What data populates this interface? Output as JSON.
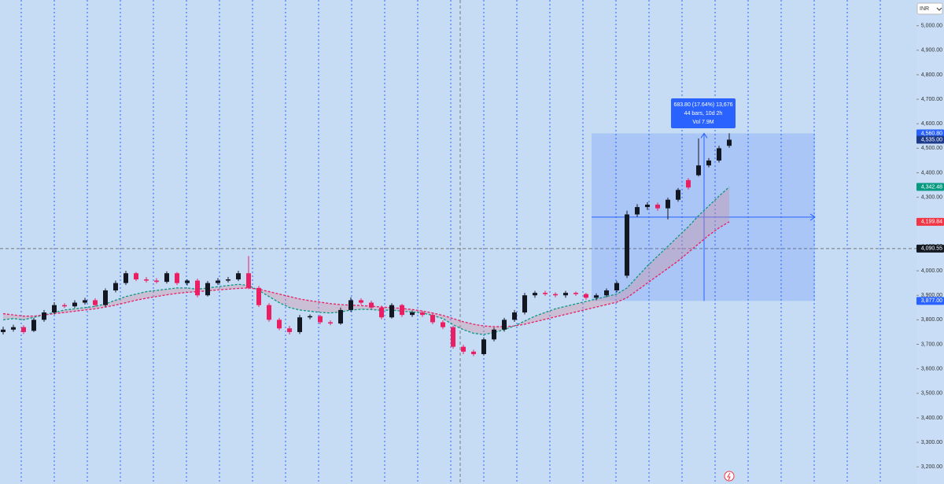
{
  "chart_data": {
    "type": "candlestick",
    "currency": "INR",
    "up_color": "#131722",
    "down_color": "#e91e63",
    "open": [
      3750,
      3760,
      3770,
      3755,
      3800,
      3830,
      3860,
      3855,
      3870,
      3880,
      3860,
      3920,
      3950,
      3990,
      3965,
      3960,
      3955,
      3990,
      3950,
      3960,
      3900,
      3950,
      3960,
      3965,
      3990,
      3930,
      3860,
      3800,
      3765,
      3750,
      3810,
      3815,
      3790,
      3785,
      3840,
      3880,
      3870,
      3850,
      3810,
      3860,
      3820,
      3830,
      3820,
      3790,
      3770,
      3690,
      3670,
      3660,
      3720,
      3760,
      3800,
      3830,
      3900,
      3910,
      3905,
      3900,
      3910,
      3905,
      3890,
      3900,
      3920,
      3980,
      4230,
      4260,
      4270,
      4255,
      4290,
      4370,
      4390,
      4430,
      4450,
      4510
    ],
    "high": [
      3772,
      3780,
      3778,
      3808,
      3840,
      3872,
      3868,
      3880,
      3890,
      3888,
      3928,
      3960,
      4000,
      3995,
      3975,
      3970,
      3998,
      3995,
      3965,
      3968,
      3958,
      3970,
      3975,
      4000,
      4060,
      3938,
      3868,
      3808,
      3775,
      3820,
      3822,
      3820,
      3798,
      3850,
      3892,
      3888,
      3878,
      3858,
      3868,
      3865,
      3838,
      3836,
      3826,
      3798,
      3776,
      3698,
      3678,
      3728,
      3768,
      3808,
      3840,
      3910,
      3918,
      3918,
      3912,
      3918,
      3915,
      3910,
      3908,
      3928,
      3958,
      4245,
      4272,
      4280,
      4278,
      4298,
      4338,
      4378,
      4540,
      4460,
      4510,
      4561
    ],
    "low": [
      3740,
      3752,
      3742,
      3750,
      3792,
      3822,
      3848,
      3848,
      3862,
      3852,
      3852,
      3912,
      3942,
      3958,
      3952,
      3948,
      3948,
      3942,
      3940,
      3892,
      3895,
      3942,
      3952,
      3958,
      3925,
      3852,
      3792,
      3758,
      3740,
      3742,
      3802,
      3782,
      3778,
      3780,
      3832,
      3862,
      3842,
      3802,
      3805,
      3812,
      3812,
      3812,
      3782,
      3762,
      3682,
      3660,
      3652,
      3655,
      3712,
      3752,
      3792,
      3822,
      3890,
      3898,
      3892,
      3890,
      3898,
      3882,
      3880,
      3892,
      3912,
      3970,
      4220,
      4248,
      4245,
      4210,
      4282,
      4332,
      4385,
      4422,
      4442,
      4502
    ],
    "close": [
      3760,
      3770,
      3750,
      3800,
      3830,
      3860,
      3855,
      3870,
      3880,
      3860,
      3920,
      3950,
      3990,
      3965,
      3960,
      3955,
      3990,
      3950,
      3960,
      3900,
      3950,
      3960,
      3965,
      3990,
      3930,
      3860,
      3800,
      3765,
      3750,
      3810,
      3815,
      3790,
      3785,
      3840,
      3880,
      3870,
      3850,
      3810,
      3860,
      3820,
      3830,
      3820,
      3790,
      3770,
      3690,
      3670,
      3660,
      3720,
      3760,
      3800,
      3830,
      3900,
      3910,
      3905,
      3900,
      3910,
      3905,
      3890,
      3900,
      3920,
      3950,
      4230,
      4260,
      4270,
      4255,
      4290,
      4330,
      4340,
      4430,
      4450,
      4500,
      4535
    ],
    "series": [
      {
        "color": "#089981",
        "values": [
          3800,
          3805,
          3800,
          3810,
          3820,
          3830,
          3840,
          3845,
          3850,
          3855,
          3865,
          3880,
          3895,
          3905,
          3915,
          3920,
          3925,
          3930,
          3930,
          3925,
          3930,
          3935,
          3940,
          3945,
          3940,
          3920,
          3895,
          3870,
          3850,
          3840,
          3835,
          3830,
          3828,
          3832,
          3840,
          3843,
          3842,
          3838,
          3840,
          3835,
          3832,
          3828,
          3818,
          3805,
          3780,
          3760,
          3745,
          3740,
          3748,
          3760,
          3775,
          3795,
          3815,
          3830,
          3845,
          3855,
          3865,
          3875,
          3885,
          3895,
          3905,
          3930,
          3975,
          4020,
          4060,
          4100,
          4140,
          4180,
          4225,
          4265,
          4305,
          4342
        ]
      },
      {
        "color": "#e91e63",
        "values": [
          3825,
          3820,
          3815,
          3815,
          3820,
          3825,
          3830,
          3835,
          3840,
          3845,
          3852,
          3860,
          3870,
          3880,
          3888,
          3895,
          3902,
          3908,
          3912,
          3915,
          3918,
          3922,
          3925,
          3928,
          3930,
          3925,
          3915,
          3905,
          3895,
          3885,
          3878,
          3872,
          3866,
          3862,
          3860,
          3858,
          3856,
          3852,
          3850,
          3846,
          3842,
          3836,
          3828,
          3818,
          3805,
          3792,
          3782,
          3775,
          3772,
          3772,
          3775,
          3782,
          3792,
          3802,
          3812,
          3822,
          3832,
          3842,
          3852,
          3862,
          3872,
          3890,
          3920,
          3950,
          3980,
          4010,
          4040,
          4075,
          4110,
          4145,
          4175,
          4200
        ]
      }
    ],
    "ylim": [
      3130,
      5105
    ],
    "yticks": [
      {
        "value": 3200,
        "label": "3,200.00"
      },
      {
        "value": 3300,
        "label": "3,300.00"
      },
      {
        "value": 3400,
        "label": "3,400.00"
      },
      {
        "value": 3500,
        "label": "3,500.00"
      },
      {
        "value": 3600,
        "label": "3,600.00"
      },
      {
        "value": 3700,
        "label": "3,700.00"
      },
      {
        "value": 3800,
        "label": "3,800.00"
      },
      {
        "value": 3900,
        "label": "3,900.00"
      },
      {
        "value": 4000,
        "label": "4,000.00"
      },
      {
        "value": 4100,
        "label": "4,100.00"
      },
      {
        "value": 4200,
        "label": "4,200.00"
      },
      {
        "value": 4300,
        "label": "4,300.00"
      },
      {
        "value": 4400,
        "label": "4,400.00"
      },
      {
        "value": 4500,
        "label": "4,500.00"
      },
      {
        "value": 4600,
        "label": "4,600.00"
      },
      {
        "value": 4700,
        "label": "4,700.00"
      },
      {
        "value": 4800,
        "label": "4,800.00"
      },
      {
        "value": 4900,
        "label": "4,900.00"
      },
      {
        "value": 5000,
        "label": "5,000.00"
      }
    ],
    "price_labels": [
      {
        "value": 4560.8,
        "label": "4,560.80",
        "color": "#2962ff"
      },
      {
        "value": 4535,
        "label": "4,535.00",
        "color": "#1e3a8a"
      },
      {
        "value": 4342.48,
        "label": "4,342.48",
        "color": "#089981"
      },
      {
        "value": 4199.84,
        "label": "4,199.84",
        "color": "#f23645"
      },
      {
        "value": 4090.55,
        "label": "4,090.55",
        "color": "#131722"
      },
      {
        "value": 3877,
        "label": "3,877.00",
        "color": "#2962ff"
      }
    ],
    "measure": {
      "lines": [
        "683.80 (17.64%) 13,676",
        "44 bars, 10d 2h",
        "Vol 7.9M"
      ]
    }
  }
}
